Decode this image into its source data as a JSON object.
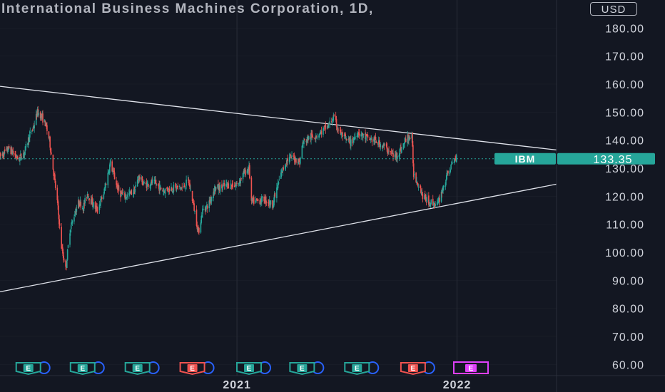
{
  "header": {
    "title": "International Business Machines Corporation, 1D,",
    "currency": "USD"
  },
  "colors": {
    "background": "#131722",
    "grid": "#2a2e39",
    "up": "#26a69a",
    "down": "#ef5350",
    "trendline": "#e0e3eb",
    "axis_text": "#d1d4dc",
    "price_label": "#26a69a",
    "earnings_up": "#26a69a",
    "earnings_down": "#ef5350",
    "earnings_next": "#e040fb",
    "dividend_ring": "#2962ff"
  },
  "chart_data": {
    "type": "candlestick",
    "symbol_label": "IBM",
    "last_price": "133.35",
    "y_ticks": [
      "60.00",
      "70.00",
      "80.00",
      "90.00",
      "100.00",
      "110.00",
      "120.00",
      "130.00",
      "140.00",
      "150.00",
      "160.00",
      "170.00",
      "180.00"
    ],
    "x_ticks": [
      {
        "date": "2021-01-01",
        "label": "2021"
      },
      {
        "date": "2022-01-01",
        "label": "2022"
      }
    ],
    "ylim": [
      56,
      190
    ],
    "xlim": [
      "2019-12-05",
      "2022-06-15"
    ],
    "trendlines": [
      {
        "points": [
          [
            "2019-12-05",
            159.2
          ],
          [
            "2022-06-15",
            136.5
          ]
        ]
      },
      {
        "points": [
          [
            "2019-12-05",
            85.9
          ],
          [
            "2022-06-15",
            124.3
          ]
        ]
      }
    ],
    "path": [
      [
        "2019-12-05",
        134
      ],
      [
        "2019-12-20",
        137
      ],
      [
        "2020-01-05",
        133
      ],
      [
        "2020-01-15",
        136
      ],
      [
        "2020-01-22",
        141
      ],
      [
        "2020-01-30",
        145
      ],
      [
        "2020-02-05",
        150
      ],
      [
        "2020-02-10",
        149
      ],
      [
        "2020-02-18",
        146
      ],
      [
        "2020-02-25",
        140
      ],
      [
        "2020-03-02",
        130
      ],
      [
        "2020-03-09",
        118
      ],
      [
        "2020-03-16",
        102
      ],
      [
        "2020-03-23",
        94
      ],
      [
        "2020-03-30",
        108
      ],
      [
        "2020-04-07",
        114
      ],
      [
        "2020-04-14",
        118
      ],
      [
        "2020-04-21",
        116
      ],
      [
        "2020-04-28",
        121
      ],
      [
        "2020-05-05",
        118
      ],
      [
        "2020-05-14",
        115
      ],
      [
        "2020-05-25",
        121
      ],
      [
        "2020-06-05",
        132
      ],
      [
        "2020-06-10",
        128
      ],
      [
        "2020-06-20",
        121
      ],
      [
        "2020-07-01",
        120
      ],
      [
        "2020-07-15",
        122
      ],
      [
        "2020-07-22",
        127
      ],
      [
        "2020-08-01",
        124
      ],
      [
        "2020-08-15",
        125
      ],
      [
        "2020-09-01",
        122
      ],
      [
        "2020-09-15",
        123
      ],
      [
        "2020-10-05",
        123
      ],
      [
        "2020-10-12",
        126
      ],
      [
        "2020-10-20",
        118
      ],
      [
        "2020-10-29",
        107
      ],
      [
        "2020-11-05",
        115
      ],
      [
        "2020-11-15",
        117
      ],
      [
        "2020-11-25",
        123
      ],
      [
        "2020-12-05",
        123
      ],
      [
        "2020-12-15",
        124
      ],
      [
        "2021-01-01",
        124
      ],
      [
        "2021-01-12",
        128
      ],
      [
        "2021-01-21",
        130
      ],
      [
        "2021-01-25",
        118
      ],
      [
        "2021-02-01",
        118
      ],
      [
        "2021-02-15",
        119
      ],
      [
        "2021-03-01",
        117
      ],
      [
        "2021-03-15",
        128
      ],
      [
        "2021-03-25",
        133
      ],
      [
        "2021-04-05",
        134
      ],
      [
        "2021-04-15",
        132
      ],
      [
        "2021-04-20",
        139
      ],
      [
        "2021-05-01",
        141
      ],
      [
        "2021-05-15",
        142
      ],
      [
        "2021-06-01",
        145
      ],
      [
        "2021-06-10",
        148
      ],
      [
        "2021-06-20",
        143
      ],
      [
        "2021-07-01",
        140
      ],
      [
        "2021-07-10",
        139
      ],
      [
        "2021-07-20",
        143
      ],
      [
        "2021-08-01",
        141
      ],
      [
        "2021-08-15",
        140
      ],
      [
        "2021-09-01",
        138
      ],
      [
        "2021-09-20",
        134
      ],
      [
        "2021-10-01",
        137
      ],
      [
        "2021-10-10",
        141
      ],
      [
        "2021-10-18",
        141
      ],
      [
        "2021-10-21",
        128
      ],
      [
        "2021-11-01",
        123
      ],
      [
        "2021-11-05",
        120
      ],
      [
        "2021-11-15",
        118
      ],
      [
        "2021-11-30",
        117
      ],
      [
        "2021-12-10",
        124
      ],
      [
        "2021-12-20",
        130
      ],
      [
        "2021-12-31",
        134
      ]
    ],
    "earnings_markers": [
      {
        "date": "2020-01-21",
        "type": "up",
        "label": "E"
      },
      {
        "date": "2020-04-20",
        "type": "up",
        "label": "E"
      },
      {
        "date": "2020-07-20",
        "type": "up",
        "label": "E"
      },
      {
        "date": "2020-10-19",
        "type": "down",
        "label": "E"
      },
      {
        "date": "2021-01-21",
        "type": "up",
        "label": "E"
      },
      {
        "date": "2021-04-19",
        "type": "up",
        "label": "E"
      },
      {
        "date": "2021-07-19",
        "type": "up",
        "label": "E"
      },
      {
        "date": "2021-10-20",
        "type": "down",
        "label": "E"
      },
      {
        "date": "2022-01-24",
        "type": "next",
        "label": "E"
      }
    ]
  }
}
